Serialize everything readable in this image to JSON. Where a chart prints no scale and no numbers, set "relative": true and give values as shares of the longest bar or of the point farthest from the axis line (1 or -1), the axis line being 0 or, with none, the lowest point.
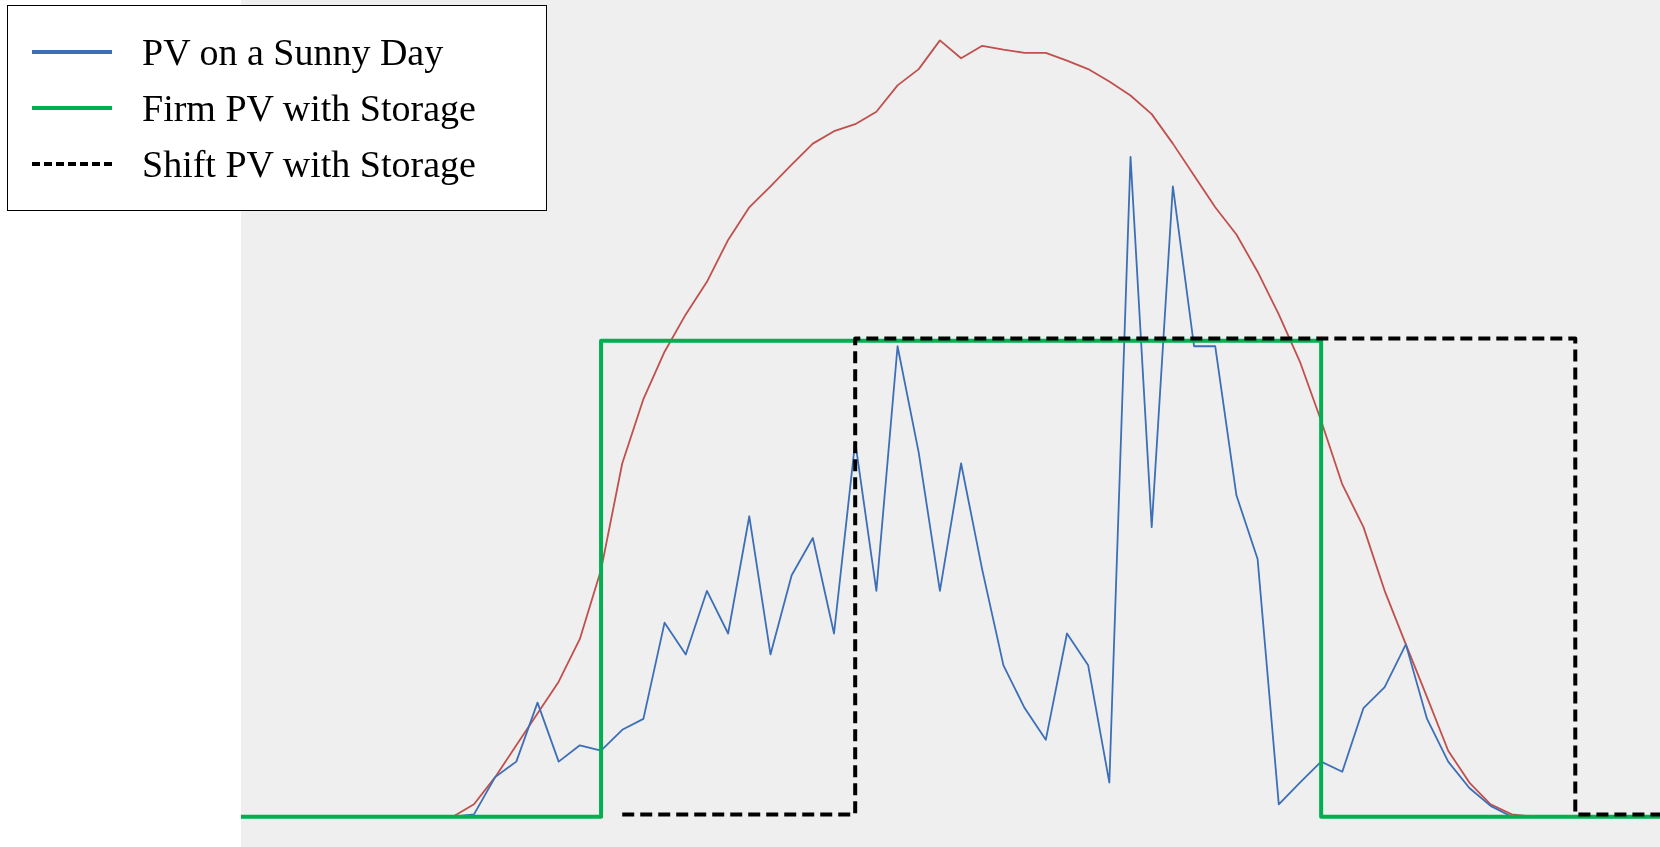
{
  "chart_data": {
    "type": "line",
    "relative": true,
    "legend": "top left",
    "categories": [
      null,
      null,
      null,
      null,
      null,
      null,
      null,
      null,
      null,
      null,
      null,
      null,
      null,
      null,
      null,
      null,
      null,
      null,
      null,
      null,
      null,
      null,
      null,
      null,
      null,
      null,
      null,
      null,
      null,
      null,
      null,
      null,
      null,
      null,
      null,
      null,
      null,
      null,
      null,
      null,
      null,
      null,
      null,
      null,
      null,
      null,
      null,
      null,
      null,
      null,
      null,
      null,
      null,
      null,
      null,
      null,
      null,
      null,
      null,
      null,
      null,
      null,
      null,
      null,
      null,
      null,
      null,
      null
    ],
    "series": [
      {
        "color": "#c0504d",
        "values": [
          null,
          null,
          null,
          null,
          null,
          null,
          null,
          null,
          null,
          0,
          0,
          0.016,
          0.051,
          0.092,
          0.133,
          0.174,
          0.229,
          0.318,
          0.455,
          0.538,
          0.599,
          0.647,
          0.689,
          0.743,
          0.785,
          0.812,
          0.84,
          0.867,
          0.883,
          0.892,
          0.908,
          0.942,
          0.963,
          1,
          0.977,
          0.993,
          0.988,
          0.984,
          0.984,
          0.974,
          0.963,
          0.947,
          0.929,
          0.905,
          0.867,
          0.826,
          0.785,
          0.75,
          0.702,
          0.647,
          0.586,
          0.51,
          0.428,
          0.373,
          0.291,
          0.222,
          0.154,
          0.085,
          0.044,
          0.016,
          0.003,
          0,
          null,
          null,
          null,
          null,
          null,
          null
        ]
      },
      {
        "name": "PV on a Sunny Day",
        "color": "#3d6fb6",
        "values": [
          null,
          null,
          null,
          null,
          null,
          null,
          null,
          null,
          null,
          0,
          0,
          0.003,
          0.051,
          0.071,
          0.147,
          0.071,
          0.092,
          0.085,
          0.112,
          0.126,
          0.25,
          0.209,
          0.291,
          0.236,
          0.387,
          0.209,
          0.311,
          0.359,
          0.236,
          0.483,
          0.291,
          0.606,
          0.469,
          0.291,
          0.455,
          0.318,
          0.195,
          0.14,
          0.099,
          0.236,
          0.195,
          0.044,
          0.85,
          0.373,
          0.812,
          0.606,
          0.606,
          0.414,
          0.332,
          0.016,
          0.044,
          0.071,
          0.058,
          0.14,
          0.167,
          0.222,
          0.126,
          0.071,
          0.037,
          0.014,
          0,
          0,
          null,
          null,
          null,
          null,
          null,
          null
        ]
      },
      {
        "type": "step",
        "name": "Firm PV with Storage",
        "color": "#00b050",
        "line_style": "solid",
        "values": [
          0,
          0,
          0,
          0,
          0,
          0,
          0,
          0,
          0,
          0,
          0,
          0,
          0,
          0,
          0,
          0,
          0,
          0,
          0.613,
          0.613,
          0.613,
          0.613,
          0.613,
          0.613,
          0.613,
          0.613,
          0.613,
          0.613,
          0.613,
          0.613,
          0.613,
          0.613,
          0.613,
          0.613,
          0.613,
          0.613,
          0.613,
          0.613,
          0.613,
          0.613,
          0.613,
          0.613,
          0.613,
          0.613,
          0.613,
          0.613,
          0.613,
          0.613,
          0.613,
          0.613,
          0.613,
          0.613,
          0,
          0,
          0,
          0,
          0,
          0,
          0,
          0,
          0,
          0,
          0,
          0,
          0,
          0,
          0,
          0
        ]
      },
      {
        "type": "step",
        "name": "Shift PV with Storage",
        "color": "#000000",
        "line_style": "dashed",
        "values": [
          null,
          null,
          null,
          null,
          null,
          null,
          null,
          null,
          null,
          null,
          null,
          null,
          null,
          null,
          null,
          null,
          null,
          null,
          0.003,
          0.003,
          0.003,
          0.003,
          0.003,
          0.003,
          0.003,
          0.003,
          0.003,
          0.003,
          0.003,
          0.003,
          0.616,
          0.616,
          0.616,
          0.616,
          0.616,
          0.616,
          0.616,
          0.616,
          0.616,
          0.616,
          0.616,
          0.616,
          0.616,
          0.616,
          0.616,
          0.616,
          0.616,
          0.616,
          0.616,
          0.616,
          0.616,
          0.616,
          0.616,
          0.616,
          0.616,
          0.616,
          0.616,
          0.616,
          0.616,
          0.616,
          0.616,
          0.616,
          0.616,
          0.616,
          0.003,
          0.003,
          0.003,
          0.003
        ]
      }
    ]
  }
}
